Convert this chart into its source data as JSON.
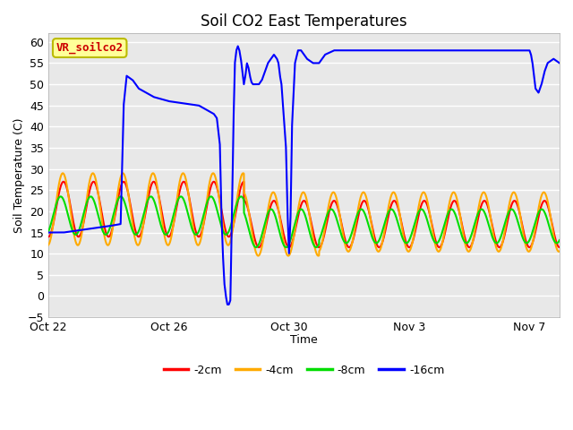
{
  "title": "Soil CO2 East Temperatures",
  "xlabel": "Time",
  "ylabel": "Soil Temperature (C)",
  "ylim": [
    -5,
    62
  ],
  "xlim_days": [
    0,
    17
  ],
  "legend_label": "VR_soilco2",
  "series_labels": [
    "-2cm",
    "-4cm",
    "-8cm",
    "-16cm"
  ],
  "series_colors": [
    "#ff0000",
    "#ffaa00",
    "#00dd00",
    "#0000ff"
  ],
  "xtick_labels": [
    "Oct 22",
    "Oct 26",
    "Oct 30",
    "Nov 3",
    "Nov 7"
  ],
  "xtick_positions": [
    0,
    4,
    8,
    12,
    16
  ],
  "ytick_positions": [
    -5,
    0,
    5,
    10,
    15,
    20,
    25,
    30,
    35,
    40,
    45,
    50,
    55,
    60
  ]
}
